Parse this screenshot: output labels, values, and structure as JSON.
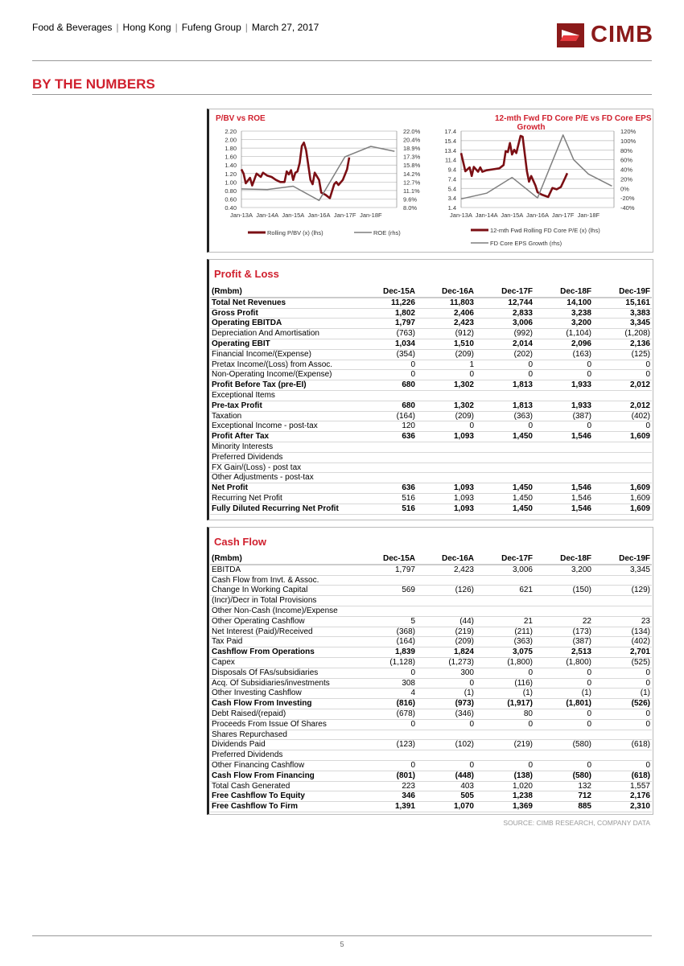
{
  "header": {
    "breadcrumb": [
      "Food & Beverages",
      "Hong Kong",
      "Fufeng Group",
      "March 27, 2017"
    ],
    "logo_text": "CIMB"
  },
  "section_title": "BY THE NUMBERS",
  "colors": {
    "accent": "#d0202e",
    "logo": "#8b1a1a",
    "series_primary": "#7b0f14",
    "series_secondary": "#7f7f7f"
  },
  "chart_data": [
    {
      "type": "line",
      "title": "P/BV vs ROE",
      "x_ticks": [
        "Jan-13A",
        "Jan-14A",
        "Jan-15A",
        "Jan-16A",
        "Jan-17F",
        "Jan-18F"
      ],
      "y_left": {
        "ticks": [
          "2.20",
          "2.00",
          "1.80",
          "1.60",
          "1.40",
          "1.20",
          "1.00",
          "0.80",
          "0.60",
          "0.40"
        ],
        "range": [
          0.4,
          2.2
        ]
      },
      "y_right": {
        "ticks": [
          "22.0%",
          "20.4%",
          "18.9%",
          "17.3%",
          "15.8%",
          "14.2%",
          "12.7%",
          "11.1%",
          "9.6%",
          "8.0%"
        ],
        "range": [
          8.0,
          22.0
        ]
      },
      "grid": true,
      "legend_position": "bottom",
      "series": [
        {
          "name": "Rolling P/BV (x) (lhs)",
          "axis": "left",
          "color": "#7b0f14",
          "points": [
            [
              "2013-01",
              1.3
            ],
            [
              "2013-02",
              1.2
            ],
            [
              "2013-03",
              0.97
            ],
            [
              "2013-05",
              1.1
            ],
            [
              "2013-06",
              0.92
            ],
            [
              "2013-08",
              1.2
            ],
            [
              "2013-10",
              1.12
            ],
            [
              "2013-11",
              1.22
            ],
            [
              "2014-01",
              1.15
            ],
            [
              "2014-03",
              1.12
            ],
            [
              "2014-05",
              1.05
            ],
            [
              "2014-07",
              1.0
            ],
            [
              "2014-09",
              1.0
            ],
            [
              "2014-10",
              1.25
            ],
            [
              "2014-11",
              1.18
            ],
            [
              "2014-12",
              1.28
            ],
            [
              "2015-01",
              1.05
            ],
            [
              "2015-02",
              1.22
            ],
            [
              "2015-03",
              1.25
            ],
            [
              "2015-04",
              1.45
            ],
            [
              "2015-05",
              1.85
            ],
            [
              "2015-06",
              1.93
            ],
            [
              "2015-07",
              1.75
            ],
            [
              "2015-08",
              1.4
            ],
            [
              "2015-09",
              1.05
            ],
            [
              "2015-10",
              0.95
            ],
            [
              "2015-11",
              1.22
            ],
            [
              "2016-01",
              1.05
            ],
            [
              "2016-02",
              0.75
            ],
            [
              "2016-04",
              0.7
            ],
            [
              "2016-06",
              0.62
            ],
            [
              "2016-08",
              0.95
            ],
            [
              "2016-09",
              1.0
            ],
            [
              "2016-10",
              0.93
            ],
            [
              "2016-12",
              1.05
            ],
            [
              "2017-02",
              1.3
            ],
            [
              "2017-03",
              1.58
            ]
          ]
        },
        {
          "name": "ROE (rhs)",
          "axis": "right",
          "color": "#7f7f7f",
          "points": [
            [
              "2013-01",
              11.4
            ],
            [
              "2014-01",
              11.3
            ],
            [
              "2015-01",
              11.9
            ],
            [
              "2016-01",
              9.3
            ],
            [
              "2017-01",
              17.3
            ],
            [
              "2018-01",
              19.2
            ],
            [
              "2018-12",
              18.3
            ]
          ]
        }
      ]
    },
    {
      "type": "line",
      "title": "12-mth Fwd FD Core P/E vs FD Core EPS Growth",
      "x_ticks": [
        "Jan-13A",
        "Jan-14A",
        "Jan-15A",
        "Jan-16A",
        "Jan-17F",
        "Jan-18F"
      ],
      "y_left": {
        "ticks": [
          "17.4",
          "15.4",
          "13.4",
          "11.4",
          "9.4",
          "7.4",
          "5.4",
          "3.4",
          "1.4"
        ],
        "range": [
          1.4,
          17.4
        ]
      },
      "y_right": {
        "ticks": [
          "120%",
          "100%",
          "80%",
          "60%",
          "40%",
          "20%",
          "0%",
          "-20%",
          "-40%"
        ],
        "range": [
          -40,
          120
        ]
      },
      "grid": true,
      "legend_position": "bottom",
      "series": [
        {
          "name": "12-mth Fwd Rolling FD Core P/E (x) (lhs)",
          "axis": "left",
          "color": "#7b0f14",
          "points": [
            [
              "2013-01",
              12.8
            ],
            [
              "2013-03",
              9.0
            ],
            [
              "2013-05",
              9.8
            ],
            [
              "2013-06",
              8.0
            ],
            [
              "2013-07",
              9.9
            ],
            [
              "2013-09",
              8.9
            ],
            [
              "2013-10",
              9.8
            ],
            [
              "2013-11",
              8.9
            ],
            [
              "2014-01",
              9.2
            ],
            [
              "2014-04",
              9.4
            ],
            [
              "2014-07",
              9.6
            ],
            [
              "2014-09",
              10.3
            ],
            [
              "2014-10",
              13.2
            ],
            [
              "2014-11",
              13.0
            ],
            [
              "2014-12",
              14.9
            ],
            [
              "2015-01",
              12.5
            ],
            [
              "2015-02",
              13.5
            ],
            [
              "2015-03",
              12.8
            ],
            [
              "2015-05",
              16.4
            ],
            [
              "2015-06",
              16.2
            ],
            [
              "2015-08",
              9.0
            ],
            [
              "2015-09",
              6.8
            ],
            [
              "2015-10",
              8.0
            ],
            [
              "2015-12",
              6.0
            ],
            [
              "2016-01",
              4.6
            ],
            [
              "2016-03",
              4.1
            ],
            [
              "2016-06",
              3.6
            ],
            [
              "2016-08",
              5.5
            ],
            [
              "2016-10",
              5.2
            ],
            [
              "2016-12",
              5.7
            ],
            [
              "2017-02",
              7.6
            ],
            [
              "2017-03",
              8.6
            ]
          ]
        },
        {
          "name": "FD Core EPS Growth (rhs)",
          "axis": "right",
          "color": "#7f7f7f",
          "points": [
            [
              "2013-01",
              -22
            ],
            [
              "2014-01",
              -10
            ],
            [
              "2015-01",
              23
            ],
            [
              "2016-01",
              -20
            ],
            [
              "2017-01",
              112
            ],
            [
              "2017-06",
              60
            ],
            [
              "2018-01",
              30
            ],
            [
              "2018-12",
              5
            ]
          ]
        }
      ]
    }
  ],
  "profit_loss": {
    "title": "Profit & Loss",
    "columns": [
      "(Rmbm)",
      "Dec-15A",
      "Dec-16A",
      "Dec-17F",
      "Dec-18F",
      "Dec-19F"
    ],
    "rows": [
      {
        "label": "Total Net Revenues",
        "bold": true,
        "values": [
          "11,226",
          "11,803",
          "12,744",
          "14,100",
          "15,161"
        ]
      },
      {
        "label": "Gross Profit",
        "bold": true,
        "values": [
          "1,802",
          "2,406",
          "2,833",
          "3,238",
          "3,383"
        ]
      },
      {
        "label": "Operating EBITDA",
        "bold": true,
        "values": [
          "1,797",
          "2,423",
          "3,006",
          "3,200",
          "3,345"
        ]
      },
      {
        "label": "Depreciation And Amortisation",
        "bold": false,
        "values": [
          "(763)",
          "(912)",
          "(992)",
          "(1,104)",
          "(1,208)"
        ]
      },
      {
        "label": "Operating EBIT",
        "bold": true,
        "values": [
          "1,034",
          "1,510",
          "2,014",
          "2,096",
          "2,136"
        ]
      },
      {
        "label": "Financial Income/(Expense)",
        "bold": false,
        "values": [
          "(354)",
          "(209)",
          "(202)",
          "(163)",
          "(125)"
        ]
      },
      {
        "label": "Pretax Income/(Loss) from Assoc.",
        "bold": false,
        "values": [
          "0",
          "1",
          "0",
          "0",
          "0"
        ]
      },
      {
        "label": "Non-Operating Income/(Expense)",
        "bold": false,
        "values": [
          "0",
          "0",
          "0",
          "0",
          "0"
        ]
      },
      {
        "label": "Profit Before Tax (pre-EI)",
        "bold": true,
        "values": [
          "680",
          "1,302",
          "1,813",
          "1,933",
          "2,012"
        ]
      },
      {
        "label": "Exceptional Items",
        "bold": false,
        "values": [
          "",
          "",
          "",
          "",
          ""
        ]
      },
      {
        "label": "Pre-tax Profit",
        "bold": true,
        "values": [
          "680",
          "1,302",
          "1,813",
          "1,933",
          "2,012"
        ]
      },
      {
        "label": "Taxation",
        "bold": false,
        "values": [
          "(164)",
          "(209)",
          "(363)",
          "(387)",
          "(402)"
        ]
      },
      {
        "label": "Exceptional Income - post-tax",
        "bold": false,
        "values": [
          "120",
          "0",
          "0",
          "0",
          "0"
        ]
      },
      {
        "label": "Profit After Tax",
        "bold": true,
        "values": [
          "636",
          "1,093",
          "1,450",
          "1,546",
          "1,609"
        ]
      },
      {
        "label": "Minority Interests",
        "bold": false,
        "values": [
          "",
          "",
          "",
          "",
          ""
        ]
      },
      {
        "label": "Preferred Dividends",
        "bold": false,
        "values": [
          "",
          "",
          "",
          "",
          ""
        ]
      },
      {
        "label": "FX Gain/(Loss) - post tax",
        "bold": false,
        "values": [
          "",
          "",
          "",
          "",
          ""
        ]
      },
      {
        "label": "Other Adjustments - post-tax",
        "bold": false,
        "values": [
          "",
          "",
          "",
          "",
          ""
        ]
      },
      {
        "label": "Net Profit",
        "bold": true,
        "values": [
          "636",
          "1,093",
          "1,450",
          "1,546",
          "1,609"
        ]
      },
      {
        "label": "Recurring Net Profit",
        "bold": false,
        "values": [
          "516",
          "1,093",
          "1,450",
          "1,546",
          "1,609"
        ]
      },
      {
        "label": "Fully Diluted Recurring Net Profit",
        "bold": true,
        "values": [
          "516",
          "1,093",
          "1,450",
          "1,546",
          "1,609"
        ]
      }
    ]
  },
  "cash_flow": {
    "title": "Cash Flow",
    "columns": [
      "(Rmbm)",
      "Dec-15A",
      "Dec-16A",
      "Dec-17F",
      "Dec-18F",
      "Dec-19F"
    ],
    "rows": [
      {
        "label": "EBITDA",
        "bold": false,
        "values": [
          "1,797",
          "2,423",
          "3,006",
          "3,200",
          "3,345"
        ]
      },
      {
        "label": "Cash Flow from Invt. & Assoc.",
        "bold": false,
        "values": [
          "",
          "",
          "",
          "",
          ""
        ]
      },
      {
        "label": "Change In Working Capital",
        "bold": false,
        "values": [
          "569",
          "(126)",
          "621",
          "(150)",
          "(129)"
        ]
      },
      {
        "label": "(Incr)/Decr in Total Provisions",
        "bold": false,
        "values": [
          "",
          "",
          "",
          "",
          ""
        ]
      },
      {
        "label": "Other Non-Cash (Income)/Expense",
        "bold": false,
        "values": [
          "",
          "",
          "",
          "",
          ""
        ]
      },
      {
        "label": "Other Operating Cashflow",
        "bold": false,
        "values": [
          "5",
          "(44)",
          "21",
          "22",
          "23"
        ]
      },
      {
        "label": "Net Interest (Paid)/Received",
        "bold": false,
        "values": [
          "(368)",
          "(219)",
          "(211)",
          "(173)",
          "(134)"
        ]
      },
      {
        "label": "Tax Paid",
        "bold": false,
        "values": [
          "(164)",
          "(209)",
          "(363)",
          "(387)",
          "(402)"
        ]
      },
      {
        "label": "Cashflow From Operations",
        "bold": true,
        "values": [
          "1,839",
          "1,824",
          "3,075",
          "2,513",
          "2,701"
        ]
      },
      {
        "label": "Capex",
        "bold": false,
        "values": [
          "(1,128)",
          "(1,273)",
          "(1,800)",
          "(1,800)",
          "(525)"
        ]
      },
      {
        "label": "Disposals Of FAs/subsidiaries",
        "bold": false,
        "values": [
          "0",
          "300",
          "0",
          "0",
          "0"
        ]
      },
      {
        "label": "Acq. Of Subsidiaries/investments",
        "bold": false,
        "values": [
          "308",
          "0",
          "(116)",
          "0",
          "0"
        ]
      },
      {
        "label": "Other Investing Cashflow",
        "bold": false,
        "values": [
          "4",
          "(1)",
          "(1)",
          "(1)",
          "(1)"
        ]
      },
      {
        "label": "Cash Flow From Investing",
        "bold": true,
        "values": [
          "(816)",
          "(973)",
          "(1,917)",
          "(1,801)",
          "(526)"
        ]
      },
      {
        "label": "Debt Raised/(repaid)",
        "bold": false,
        "values": [
          "(678)",
          "(346)",
          "80",
          "0",
          "0"
        ]
      },
      {
        "label": "Proceeds From Issue Of Shares",
        "bold": false,
        "values": [
          "0",
          "0",
          "0",
          "0",
          "0"
        ]
      },
      {
        "label": "Shares Repurchased",
        "bold": false,
        "values": [
          "",
          "",
          "",
          "",
          ""
        ]
      },
      {
        "label": "Dividends Paid",
        "bold": false,
        "values": [
          "(123)",
          "(102)",
          "(219)",
          "(580)",
          "(618)"
        ]
      },
      {
        "label": "Preferred Dividends",
        "bold": false,
        "values": [
          "",
          "",
          "",
          "",
          ""
        ]
      },
      {
        "label": "Other Financing Cashflow",
        "bold": false,
        "values": [
          "0",
          "0",
          "0",
          "0",
          "0"
        ]
      },
      {
        "label": "Cash Flow From Financing",
        "bold": true,
        "values": [
          "(801)",
          "(448)",
          "(138)",
          "(580)",
          "(618)"
        ]
      },
      {
        "label": "Total Cash Generated",
        "bold": false,
        "values": [
          "223",
          "403",
          "1,020",
          "132",
          "1,557"
        ]
      },
      {
        "label": "Free Cashflow To Equity",
        "bold": true,
        "values": [
          "346",
          "505",
          "1,238",
          "712",
          "2,176"
        ]
      },
      {
        "label": "Free Cashflow To Firm",
        "bold": true,
        "values": [
          "1,391",
          "1,070",
          "1,369",
          "885",
          "2,310"
        ]
      }
    ]
  },
  "source": "SOURCE: CIMB RESEARCH, COMPANY DATA",
  "page_number": "5"
}
